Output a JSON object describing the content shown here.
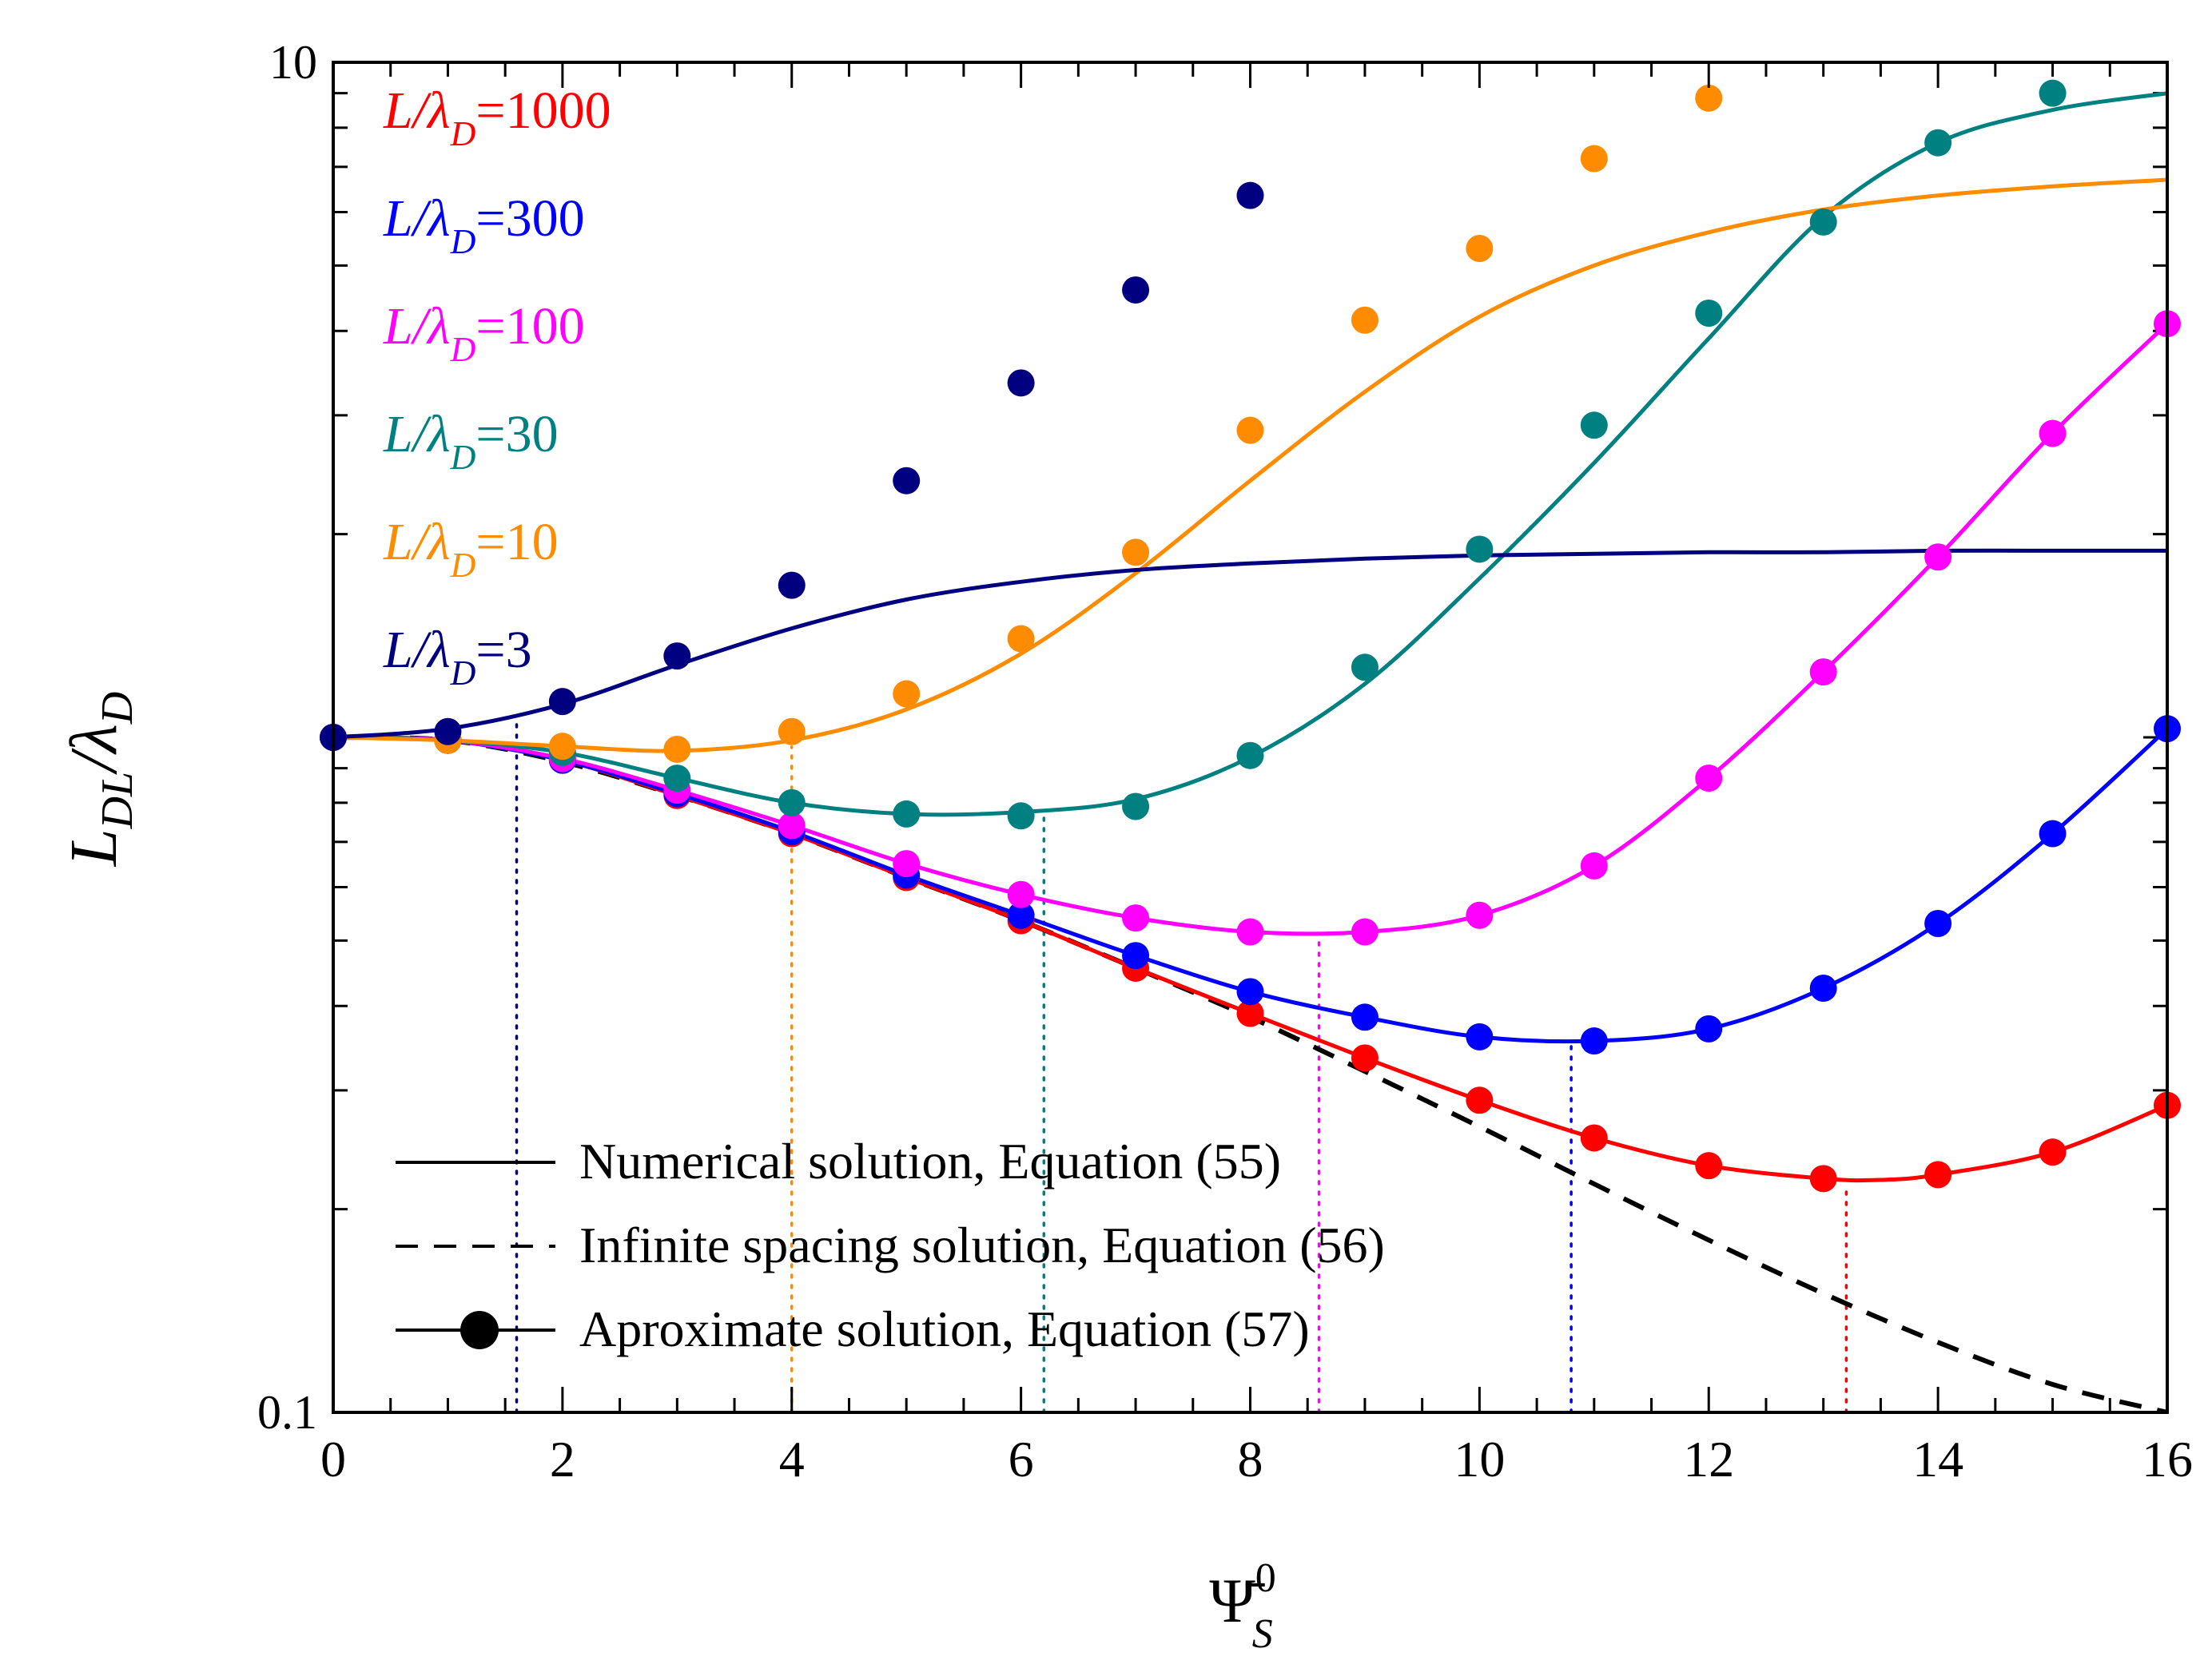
{
  "chart_data": {
    "type": "line",
    "xlabel": "Ψ̄",
    "xlabel_sup": "0",
    "xlabel_sub": "S",
    "ylabel_main": "L",
    "ylabel_sub1": "DL",
    "ylabel_slash": "/λ",
    "ylabel_sub2": "D",
    "xlim": [
      0,
      16
    ],
    "ylim": [
      0.1,
      10
    ],
    "yscale": "log",
    "x_ticks": [
      0,
      2,
      4,
      6,
      8,
      10,
      12,
      14,
      16
    ],
    "x_tick_labels": [
      "0",
      "2",
      "4",
      "6",
      "8",
      "10",
      "12",
      "14",
      "16"
    ],
    "y_ticks": [
      0.1,
      10
    ],
    "y_tick_labels": [
      "0.1",
      "10"
    ],
    "legend_series": [
      {
        "name_prefix": "L/λ",
        "name_sub": "D",
        "name_value": "=1000",
        "color": "#ff0000"
      },
      {
        "name_prefix": "L/λ",
        "name_sub": "D",
        "name_value": "=300",
        "color": "#0000ff"
      },
      {
        "name_prefix": "L/λ",
        "name_sub": "D",
        "name_value": "=100",
        "color": "#ff00ff"
      },
      {
        "name_prefix": "L/λ",
        "name_sub": "D",
        "name_value": "=30",
        "color": "#008080"
      },
      {
        "name_prefix": "L/λ",
        "name_sub": "D",
        "name_value": "=10",
        "color": "#ff8c00"
      },
      {
        "name_prefix": "L/λ",
        "name_sub": "D",
        "name_value": "=3",
        "color": "#000080"
      }
    ],
    "legend_styles": [
      {
        "label": "Numerical solution, Equation (55)",
        "style": "solid"
      },
      {
        "label": "Infinite spacing solution, Equation (56)",
        "style": "dashed"
      },
      {
        "label": "Aproximate solution, Equation (57)",
        "style": "marker"
      }
    ],
    "infinite_spacing": {
      "color": "#000000",
      "x": [
        0,
        1,
        2,
        3,
        4,
        5,
        6,
        7,
        8,
        9,
        10,
        11,
        12,
        13,
        14,
        15,
        16
      ],
      "y": [
        1.0,
        0.99,
        0.92,
        0.82,
        0.72,
        0.62,
        0.535,
        0.455,
        0.385,
        0.32,
        0.265,
        0.218,
        0.18,
        0.15,
        0.127,
        0.11,
        0.1
      ]
    },
    "series": [
      {
        "name": "L/λD=1000",
        "color": "#ff0000",
        "line_x": [
          0,
          1,
          2,
          3,
          4,
          5,
          6,
          7,
          8,
          9,
          10,
          11,
          12,
          13,
          13.5,
          14,
          15,
          16
        ],
        "line_y": [
          1.0,
          0.99,
          0.925,
          0.82,
          0.72,
          0.62,
          0.535,
          0.455,
          0.39,
          0.335,
          0.29,
          0.255,
          0.232,
          0.222,
          0.221,
          0.225,
          0.243,
          0.285
        ],
        "points_x": [
          0,
          1,
          2,
          3,
          4,
          5,
          6,
          7,
          8,
          9,
          10,
          11,
          12,
          13,
          14,
          15,
          16
        ],
        "points_y": [
          1.0,
          0.99,
          0.925,
          0.82,
          0.72,
          0.62,
          0.535,
          0.455,
          0.39,
          0.335,
          0.29,
          0.255,
          0.232,
          0.222,
          0.225,
          0.243,
          0.285
        ],
        "min_x": 13.2
      },
      {
        "name": "L/λD=300",
        "color": "#0000ff",
        "line_x": [
          0,
          1,
          2,
          3,
          4,
          5,
          6,
          7,
          8,
          9,
          10,
          11,
          12,
          13,
          14,
          15,
          16
        ],
        "line_y": [
          1.0,
          0.99,
          0.925,
          0.825,
          0.725,
          0.625,
          0.545,
          0.475,
          0.42,
          0.385,
          0.36,
          0.355,
          0.37,
          0.425,
          0.53,
          0.72,
          1.03
        ],
        "points_x": [
          0,
          1,
          2,
          3,
          4,
          5,
          6,
          7,
          8,
          9,
          10,
          11,
          12,
          13,
          14,
          15,
          16
        ],
        "points_y": [
          1.0,
          0.99,
          0.925,
          0.825,
          0.725,
          0.625,
          0.545,
          0.475,
          0.42,
          0.385,
          0.36,
          0.355,
          0.37,
          0.425,
          0.53,
          0.72,
          1.03
        ],
        "min_x": 10.8
      },
      {
        "name": "L/λD=100",
        "color": "#ff00ff",
        "line_x": [
          0,
          1,
          2,
          3,
          4,
          5,
          6,
          7,
          8,
          9,
          10,
          11,
          12,
          13,
          14,
          15,
          16
        ],
        "line_y": [
          1.0,
          0.99,
          0.93,
          0.835,
          0.74,
          0.65,
          0.585,
          0.54,
          0.515,
          0.515,
          0.545,
          0.645,
          0.87,
          1.25,
          1.85,
          2.82,
          4.1
        ],
        "points_x": [
          0,
          1,
          2,
          3,
          4,
          5,
          6,
          7,
          8,
          9,
          10,
          11,
          12,
          13,
          14,
          15,
          16
        ],
        "points_y": [
          1.0,
          0.99,
          0.93,
          0.835,
          0.74,
          0.65,
          0.585,
          0.54,
          0.515,
          0.515,
          0.545,
          0.645,
          0.87,
          1.25,
          1.85,
          2.82,
          4.1
        ],
        "min_x": 8.6
      },
      {
        "name": "L/λD=30",
        "color": "#008080",
        "line_x": [
          0,
          1,
          2,
          3,
          4,
          5,
          6,
          7,
          8,
          9,
          10,
          11,
          12,
          13,
          14,
          15,
          16
        ],
        "line_y": [
          1.0,
          0.99,
          0.95,
          0.87,
          0.8,
          0.77,
          0.775,
          0.81,
          0.935,
          1.2,
          1.72,
          2.55,
          3.9,
          5.9,
          7.6,
          8.5,
          9.0
        ],
        "points_x": [
          0,
          1,
          2,
          3,
          4,
          5,
          6,
          7,
          8,
          9,
          10,
          11,
          12,
          13,
          14,
          15
        ],
        "points_y": [
          1.0,
          0.99,
          0.95,
          0.87,
          0.8,
          0.77,
          0.765,
          0.79,
          0.94,
          1.27,
          1.9,
          2.9,
          4.25,
          5.8,
          7.6,
          9.0
        ],
        "min_x": 6.2
      },
      {
        "name": "L/λD=10",
        "color": "#ff8c00",
        "line_x": [
          0,
          1,
          2,
          3,
          4,
          5,
          6,
          7,
          8,
          9,
          10,
          11,
          12,
          13,
          14,
          15,
          16
        ],
        "line_y": [
          1.0,
          0.99,
          0.97,
          0.955,
          0.99,
          1.1,
          1.33,
          1.75,
          2.4,
          3.25,
          4.2,
          5.0,
          5.6,
          6.05,
          6.35,
          6.55,
          6.7
        ],
        "points_x": [
          0,
          1,
          2,
          3,
          4,
          5,
          6,
          7,
          8,
          9,
          10,
          11,
          12
        ],
        "points_y": [
          1.0,
          0.99,
          0.97,
          0.96,
          1.02,
          1.16,
          1.4,
          1.88,
          2.85,
          4.15,
          5.3,
          7.2,
          8.85
        ],
        "min_x": 4.0
      },
      {
        "name": "L/λD=3",
        "color": "#000080",
        "line_x": [
          0,
          1,
          2,
          3,
          4,
          5,
          6,
          7,
          8,
          9,
          10,
          11,
          12,
          13,
          14,
          15,
          16
        ],
        "line_y": [
          1.0,
          1.03,
          1.12,
          1.28,
          1.45,
          1.6,
          1.7,
          1.77,
          1.81,
          1.84,
          1.86,
          1.87,
          1.88,
          1.88,
          1.89,
          1.89,
          1.89
        ],
        "points_x": [
          0,
          1,
          2,
          3,
          4,
          5,
          6,
          7,
          8
        ],
        "points_y": [
          1.0,
          1.02,
          1.13,
          1.32,
          1.68,
          2.4,
          3.35,
          4.6,
          6.35
        ],
        "min_x": 1.6
      }
    ]
  }
}
